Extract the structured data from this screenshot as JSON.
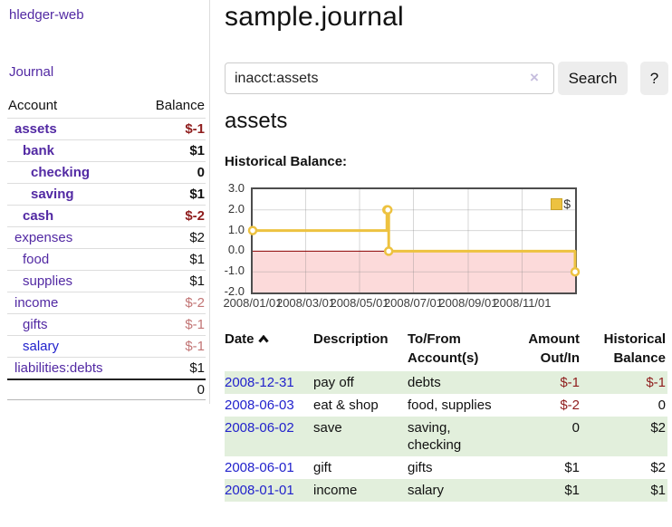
{
  "app": {
    "title": "hledger-web"
  },
  "sidebar": {
    "nav": {
      "journal": "Journal"
    },
    "table": {
      "col_account": "Account",
      "col_balance": "Balance",
      "accounts": [
        {
          "name": "assets",
          "balance": "$-1"
        },
        {
          "name": "bank",
          "balance": "$1"
        },
        {
          "name": "checking",
          "balance": "0"
        },
        {
          "name": "saving",
          "balance": "$1"
        },
        {
          "name": "cash",
          "balance": "$-2"
        },
        {
          "name": "expenses",
          "balance": "$2"
        },
        {
          "name": "food",
          "balance": "$1"
        },
        {
          "name": "supplies",
          "balance": "$1"
        },
        {
          "name": "income",
          "balance": "$-2"
        },
        {
          "name": "gifts",
          "balance": "$-1"
        },
        {
          "name": "salary",
          "balance": "$-1"
        },
        {
          "name": "liabilities:debts",
          "balance": "$1"
        }
      ],
      "total": "0"
    }
  },
  "header": {
    "title": "sample.journal"
  },
  "search": {
    "value": "inacct:assets",
    "clear_icon": "×",
    "button_label": "Search",
    "help_label": "?"
  },
  "account_page": {
    "heading": "assets",
    "chart_title": "Historical Balance:"
  },
  "chart_data": {
    "type": "line",
    "step": true,
    "title": "Historical Balance:",
    "xlim": [
      "2008-01-01",
      "2008-12-31"
    ],
    "ylim": [
      -2,
      3
    ],
    "grid": true,
    "legend_position": "top-right",
    "negative_fill": "#fcdada",
    "zero_line_color": "#8b0000",
    "x_ticks": [
      {
        "date": "2008-01-01",
        "label": "2008/01/01"
      },
      {
        "date": "2008-03-01",
        "label": "2008/03/01"
      },
      {
        "date": "2008-05-01",
        "label": "2008/05/01"
      },
      {
        "date": "2008-07-01",
        "label": "2008/07/01"
      },
      {
        "date": "2008-09-01",
        "label": "2008/09/01"
      },
      {
        "date": "2008-11-01",
        "label": "2008/11/01"
      }
    ],
    "y_ticks": [
      {
        "value": 3,
        "label": "3.0"
      },
      {
        "value": 2,
        "label": "2.0"
      },
      {
        "value": 1,
        "label": "1.0"
      },
      {
        "value": 0,
        "label": "0.0"
      },
      {
        "value": -1,
        "label": "-1.0"
      },
      {
        "value": -2,
        "label": "-2.0"
      }
    ],
    "series": [
      {
        "name": "$",
        "color": "#edc240",
        "points": [
          {
            "date": "2008-01-01",
            "value": 1
          },
          {
            "date": "2008-06-01",
            "value": 2
          },
          {
            "date": "2008-06-02",
            "value": 2
          },
          {
            "date": "2008-06-03",
            "value": 0
          },
          {
            "date": "2008-12-31",
            "value": -1
          }
        ]
      }
    ]
  },
  "register": {
    "columns": {
      "date": "Date",
      "description": "Description",
      "accounts": "To/From Account(s)",
      "amount": "Amount Out/In",
      "balance": "Historical Balance"
    },
    "rows": [
      {
        "date": "2008-12-31",
        "description": "pay off",
        "accounts": "debts",
        "amount": "$-1",
        "balance": "$-1"
      },
      {
        "date": "2008-06-03",
        "description": "eat & shop",
        "accounts": "food, supplies",
        "amount": "$-2",
        "balance": "0"
      },
      {
        "date": "2008-06-02",
        "description": "save",
        "accounts": "saving, checking",
        "amount": "0",
        "balance": "$2"
      },
      {
        "date": "2008-06-01",
        "description": "gift",
        "accounts": "gifts",
        "amount": "$1",
        "balance": "$2"
      },
      {
        "date": "2008-01-01",
        "description": "income",
        "accounts": "salary",
        "amount": "$1",
        "balance": "$1"
      }
    ]
  },
  "colors": {
    "accent_purple": "#5229a3",
    "link_blue": "#2222cc",
    "negative_strong": "#8f1d1d",
    "negative_soft": "#c27575",
    "row_green": "#e2efdc",
    "series_gold": "#edc240"
  }
}
